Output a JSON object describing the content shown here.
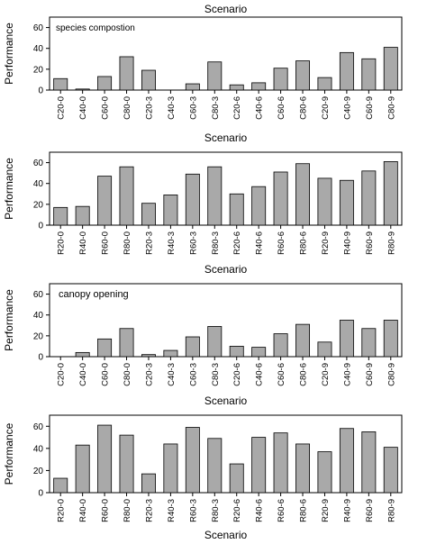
{
  "chart_data": [
    {
      "type": "bar",
      "title": "Scenario",
      "annotation": "species compostion",
      "ylabel": "Performance",
      "xlabel": "",
      "ylim": [
        0,
        70
      ],
      "yticks": [
        0,
        20,
        40,
        60
      ],
      "grid": false,
      "bar_color": "#a9a9a9",
      "categories": [
        "C20-0",
        "C40-0",
        "C60-0",
        "C80-0",
        "C20-3",
        "C40-3",
        "C60-3",
        "C80-3",
        "C20-6",
        "C40-6",
        "C60-6",
        "C80-6",
        "C20-9",
        "C40-9",
        "C60-9",
        "C80-9"
      ],
      "values": [
        11,
        1,
        13,
        32,
        19,
        0,
        6,
        27,
        5,
        7,
        21,
        28,
        12,
        36,
        30,
        41
      ]
    },
    {
      "type": "bar",
      "title": "Scenario",
      "annotation": "",
      "ylabel": "Performance",
      "xlabel": "",
      "ylim": [
        0,
        70
      ],
      "yticks": [
        0,
        20,
        40,
        60
      ],
      "grid": false,
      "bar_color": "#a9a9a9",
      "categories": [
        "R20-0",
        "R40-0",
        "R60-0",
        "R80-0",
        "R20-3",
        "R40-3",
        "R60-3",
        "R80-3",
        "R20-6",
        "R40-6",
        "R60-6",
        "R80-6",
        "R20-9",
        "R40-9",
        "R60-9",
        "R80-9"
      ],
      "values": [
        17,
        18,
        47,
        56,
        21,
        29,
        49,
        56,
        30,
        37,
        51,
        59,
        45,
        43,
        52,
        61
      ]
    },
    {
      "type": "bar",
      "title": "Scenario",
      "annotation": "canopy opening",
      "ylabel": "Performance",
      "xlabel": "",
      "ylim": [
        0,
        70
      ],
      "yticks": [
        0,
        20,
        40,
        60
      ],
      "grid": false,
      "bar_color": "#a9a9a9",
      "categories": [
        "C20-0",
        "C40-0",
        "C60-0",
        "C80-0",
        "C20-3",
        "C40-3",
        "C60-3",
        "C80-3",
        "C20-6",
        "C40-6",
        "C60-6",
        "C80-6",
        "C20-9",
        "C40-9",
        "C60-9",
        "C80-9"
      ],
      "values": [
        0,
        4,
        17,
        27,
        2,
        6,
        19,
        29,
        10,
        9,
        22,
        31,
        14,
        35,
        27,
        35
      ]
    },
    {
      "type": "bar",
      "title": "Scenario",
      "annotation": "",
      "ylabel": "Performance",
      "xlabel": "Scenario",
      "ylim": [
        0,
        70
      ],
      "yticks": [
        0,
        20,
        40,
        60
      ],
      "grid": false,
      "bar_color": "#a9a9a9",
      "categories": [
        "R20-0",
        "R40-0",
        "R60-0",
        "R80-0",
        "R20-3",
        "R40-3",
        "R60-3",
        "R80-3",
        "R20-6",
        "R40-6",
        "R60-6",
        "R80-6",
        "R20-9",
        "R40-9",
        "R60-9",
        "R80-9"
      ],
      "values": [
        13,
        43,
        61,
        52,
        17,
        44,
        59,
        49,
        26,
        50,
        54,
        44,
        37,
        58,
        55,
        41
      ]
    }
  ]
}
